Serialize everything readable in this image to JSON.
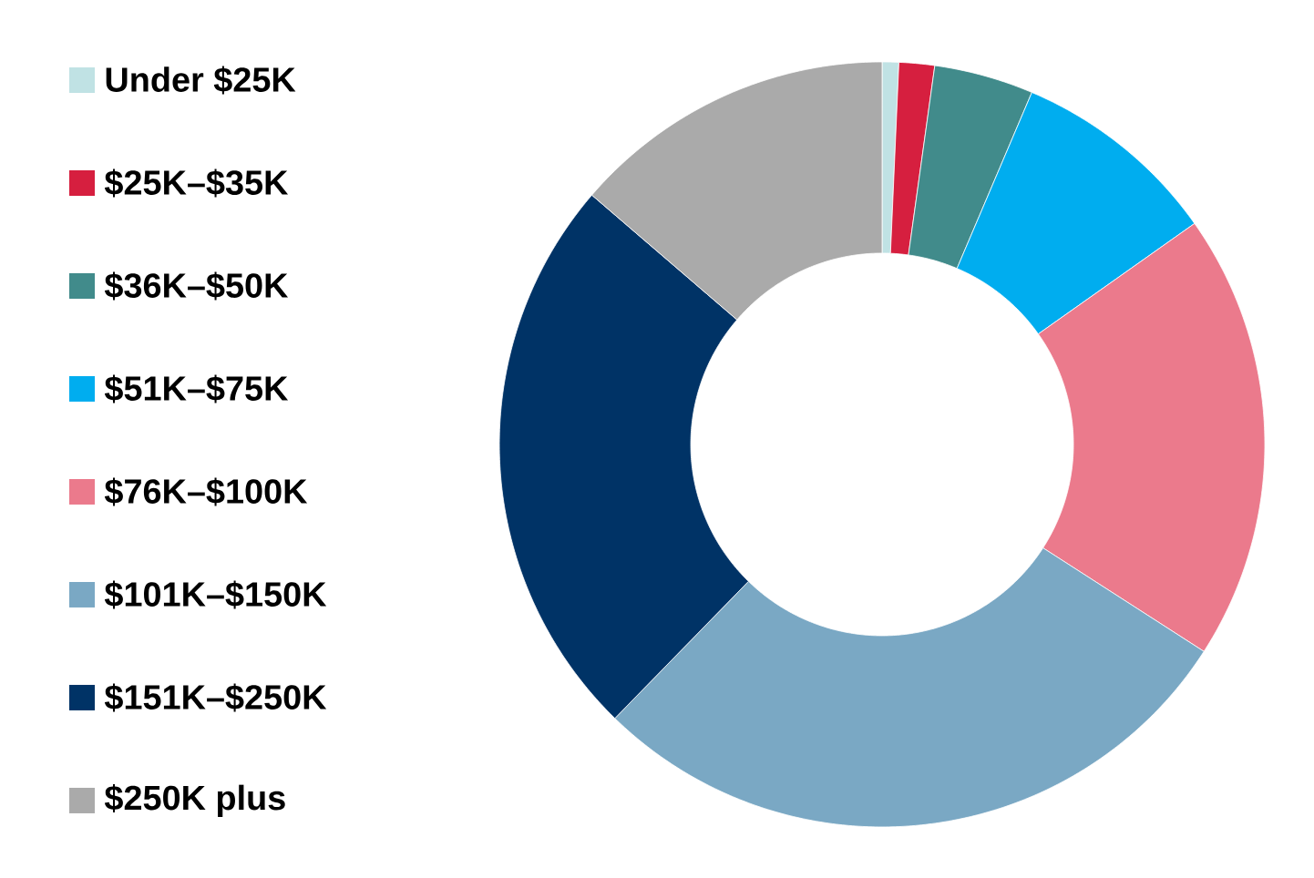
{
  "chart_data": {
    "type": "donut",
    "categories": [
      "Under $25K",
      "$25K–$35K",
      "$36K–$50K",
      "$51K–$75K",
      "$76K–$100K",
      "$101K–$150K",
      "$151K–$250K",
      "$250K plus"
    ],
    "values": [
      0.7,
      1.5,
      4.2,
      8.8,
      18.9,
      28.2,
      24.0,
      13.7
    ],
    "colors": [
      "#c0e2e4",
      "#d61f3f",
      "#418b8b",
      "#00adef",
      "#eb7a8c",
      "#7aa8c4",
      "#003366",
      "#aaaaaa"
    ],
    "legend": "left"
  }
}
